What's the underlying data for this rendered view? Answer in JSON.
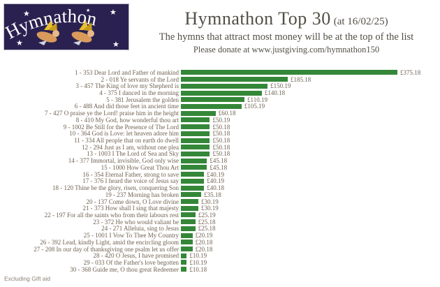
{
  "logo": {
    "text": "Hymnathon",
    "bg_color": "#2a2150",
    "text_color": "#ffffff"
  },
  "header": {
    "title": "Hymnathon Top 30",
    "title_suffix": "(at 16/02/25)",
    "subtitle": "The hymns that attract most money will be at the top of the list",
    "donate_line": "Please donate at www.justgiving.com/hymnathon150"
  },
  "footer": {
    "note": "Excluding Gift aid"
  },
  "chart_data": {
    "type": "bar",
    "orientation": "horizontal",
    "bar_color": "#348738",
    "value_prefix": "£",
    "xlim": [
      0,
      375.18
    ],
    "grid": false,
    "legend": false,
    "categories": [
      "1 - 353 Dear Lord and Father of mankind",
      "2 - 018 Ye servants of the Lord",
      "3 - 457 The King of love my Shepherd is",
      "4 - 375 I danced in the morning",
      "5 - 381 Jerusalem the golden",
      "6 - 488 And did those feet in ancient time",
      "7 - 427 O praise ye the Lord! praise him in the height",
      "8 - 410 My God, how wonderful thou art",
      "9 - 1002 Be Still for the Presence of The Lord",
      "10 - 364 God is Love: let heaven adore him",
      "11 - 334 All people that on earth do dwell",
      "12 - 294 Just as I am, without one plea",
      "13 - 1003 I The Lord of Sea and Sky",
      "14 - 377 Immortal, invisible, God only wise",
      "15 - 1000 How Great Thou Art",
      "16 - 354 Eternal Father, strong to save",
      "17 - 376 I heard the voice of Jesus say",
      "18 - 120 Thine be the glory, risen, conquering Son",
      "19 - 237 Morning has broken",
      "20 - 137 Come down, O Love divine",
      "21 - 373 How shall I sing that majesty",
      "22 - 197 For all the saints who from their labours rest",
      "23 - 372 He who would valiant be",
      "24 - 271 Alleluia, sing to Jesus",
      "25 - 1001 I Vow To Thee My Country",
      "26 - 392 Lead, kindly Light, amid the encircling gloom",
      "27 - 208 In our day of thanksgiving one psalm let us offer",
      "28 - 420 O Jesus, I have promised",
      "29 - 033 Of the Father's love begotten",
      "30 - 368 Guide me, O thou great Redeemer"
    ],
    "values": [
      375.18,
      185.18,
      150.19,
      140.18,
      110.19,
      105.19,
      60.18,
      50.19,
      50.18,
      50.18,
      50.18,
      50.18,
      50.18,
      45.18,
      45.18,
      40.19,
      40.19,
      40.18,
      35.18,
      30.19,
      30.19,
      25.19,
      25.18,
      25.18,
      20.19,
      20.18,
      20.18,
      10.19,
      10.19,
      10.18
    ],
    "value_labels": [
      "£375.18",
      "£185.18",
      "£150.19",
      "£140.18",
      "£110.19",
      "£105.19",
      "£60.18",
      "£50.19",
      "£50.18",
      "£50.18",
      "£50.18",
      "£50.18",
      "£50.18",
      "£45.18",
      "£45.18",
      "£40.19",
      "£40.19",
      "£40.18",
      "£35.18",
      "£30.19",
      "£30.19",
      "£25.19",
      "£25.18",
      "£25.18",
      "£20.19",
      "£20.18",
      "£20.18",
      "£10.19",
      "£10.19",
      "£10.18"
    ]
  }
}
